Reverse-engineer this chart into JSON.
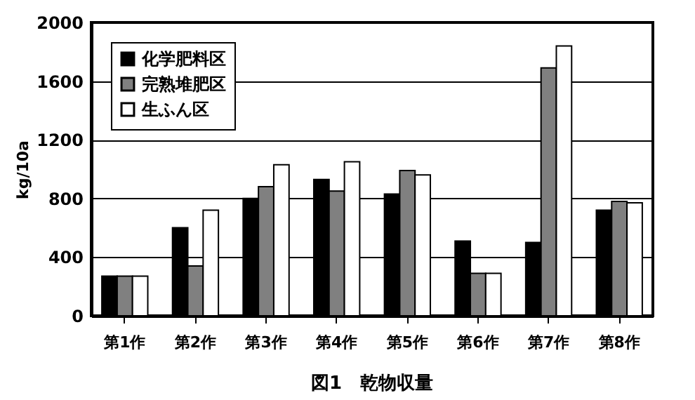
{
  "chart_data": {
    "type": "bar",
    "title": "図1　乾物収量",
    "ylabel": "kg/10a",
    "categories": [
      "第1作",
      "第2作",
      "第3作",
      "第4作",
      "第5作",
      "第6作",
      "第7作",
      "第8作"
    ],
    "series": [
      {
        "name": "化学肥料区",
        "color": "#000000",
        "values": [
          270,
          600,
          800,
          930,
          830,
          510,
          500,
          720
        ]
      },
      {
        "name": "完熟堆肥区",
        "color": "#808080",
        "values": [
          270,
          340,
          880,
          850,
          990,
          290,
          1690,
          780
        ]
      },
      {
        "name": "生ふん区",
        "color": "#ffffff",
        "values": [
          270,
          720,
          1030,
          1050,
          960,
          290,
          1840,
          770
        ]
      }
    ],
    "ylim": [
      0,
      2000
    ],
    "yticks": [
      0,
      400,
      800,
      1200,
      1600,
      2000
    ],
    "grid": "y",
    "legend": "top left"
  }
}
